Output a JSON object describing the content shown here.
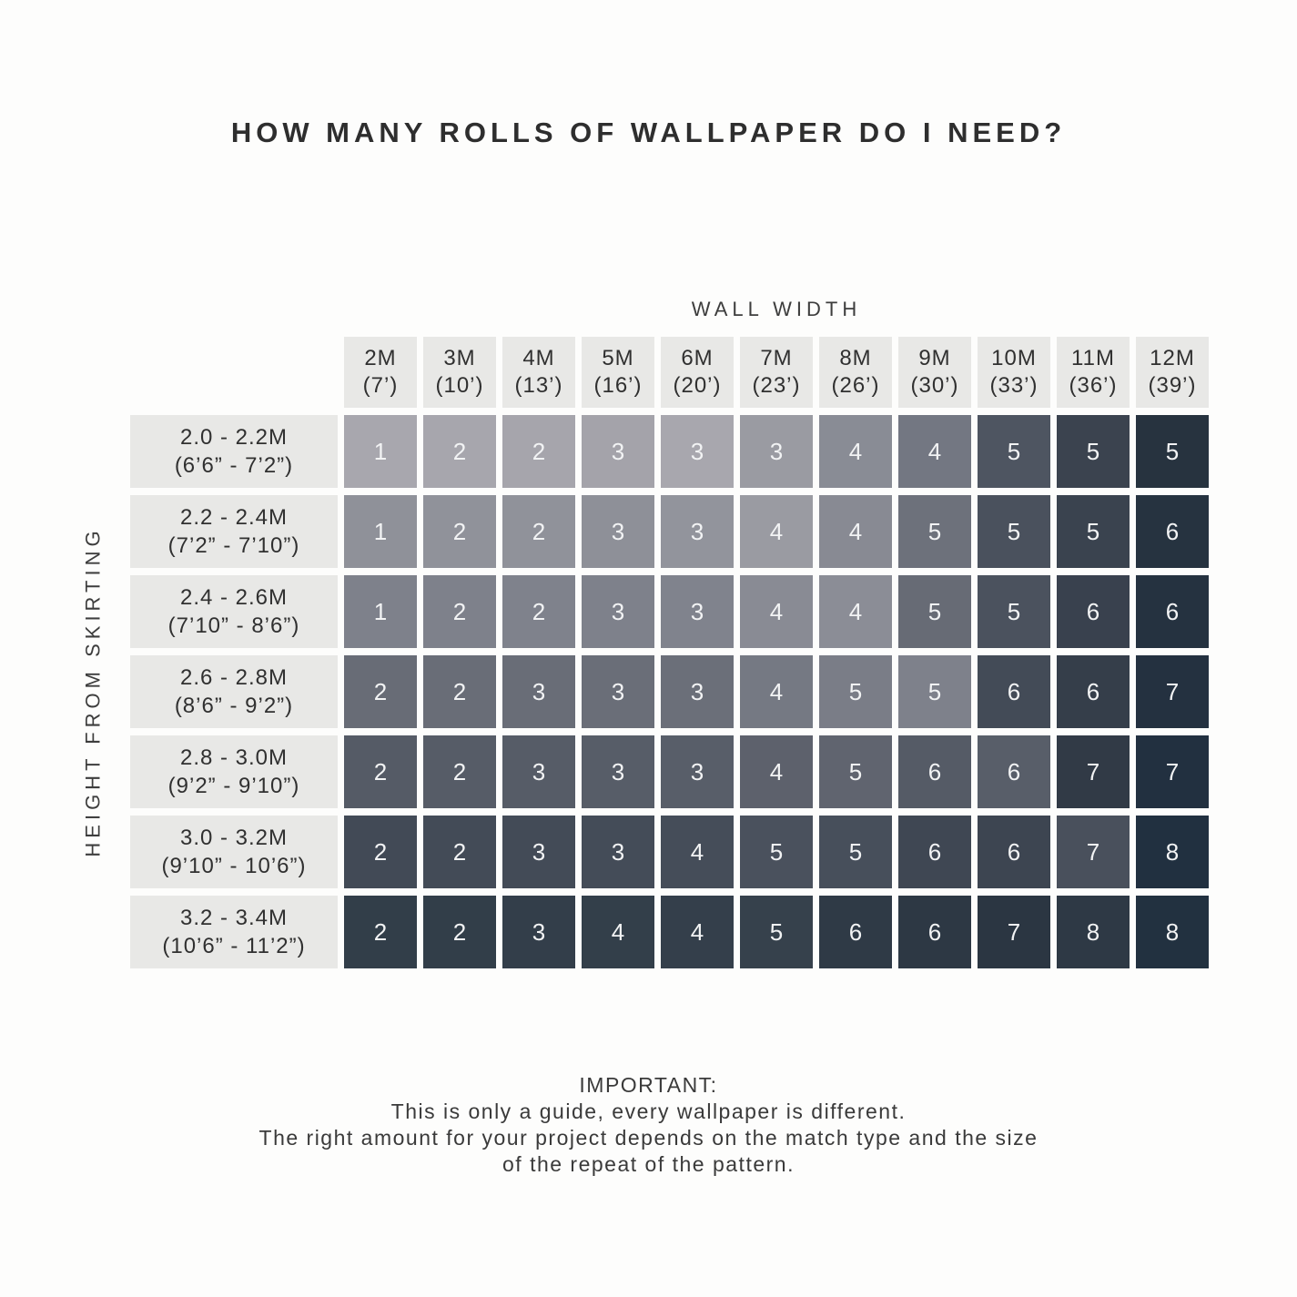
{
  "title": "HOW MANY ROLLS OF WALLPAPER DO I NEED?",
  "axes": {
    "column_axis_title": "WALL WIDTH",
    "row_axis_title": "HEIGHT FROM SKIRTING"
  },
  "columns": [
    {
      "line1": "2M",
      "line2": "(7’)"
    },
    {
      "line1": "3M",
      "line2": "(10’)"
    },
    {
      "line1": "4M",
      "line2": "(13’)"
    },
    {
      "line1": "5M",
      "line2": "(16’)"
    },
    {
      "line1": "6M",
      "line2": "(20’)"
    },
    {
      "line1": "7M",
      "line2": "(23’)"
    },
    {
      "line1": "8M",
      "line2": "(26’)"
    },
    {
      "line1": "9M",
      "line2": "(30’)"
    },
    {
      "line1": "10M",
      "line2": "(33’)"
    },
    {
      "line1": "11M",
      "line2": "(36’)"
    },
    {
      "line1": "12M",
      "line2": "(39’)"
    }
  ],
  "rows": [
    {
      "line1": "2.0 - 2.2M",
      "line2": "(6’6” - 7’2”)"
    },
    {
      "line1": "2.2 - 2.4M",
      "line2": "(7’2” - 7’10”)"
    },
    {
      "line1": "2.4 - 2.6M",
      "line2": "(7’10” - 8’6”)"
    },
    {
      "line1": "2.6 - 2.8M",
      "line2": "(8’6” - 9’2”)"
    },
    {
      "line1": "2.8 - 3.0M",
      "line2": "(9’2” - 9’10”)"
    },
    {
      "line1": "3.0 - 3.2M",
      "line2": "(9’10” - 10’6”)"
    },
    {
      "line1": "3.2 - 3.4M",
      "line2": "(10’6” - 11’2”)"
    }
  ],
  "footer": {
    "heading": "IMPORTANT:",
    "line1": "This is only a guide, every wallpaper is different.",
    "line2": "The right amount for your project depends on the match type and the size",
    "line3": "of the repeat of the pattern."
  },
  "colors": {
    "page_bg": "#fdfdfc",
    "header_box_bg": "#e8e8e6",
    "heading_text": "#2e2e2e",
    "label_text": "#303030",
    "cell_text": "#f2f3f4"
  },
  "chart_data": {
    "type": "heatmap",
    "title": "HOW MANY ROLLS OF WALLPAPER DO I NEED?",
    "x_label": "WALL WIDTH",
    "y_label": "HEIGHT FROM SKIRTING",
    "x_categories": [
      "2M (7’)",
      "3M (10’)",
      "4M (13’)",
      "5M (16’)",
      "6M (20’)",
      "7M (23’)",
      "8M (26’)",
      "9M (30’)",
      "10M (33’)",
      "11M (36’)",
      "12M (39’)"
    ],
    "y_categories": [
      "2.0 - 2.2M (6’6” - 7’2”)",
      "2.2 - 2.4M (7’2” - 7’10”)",
      "2.4 - 2.6M (7’10” - 8’6”)",
      "2.6 - 2.8M (8’6” - 9’2”)",
      "2.8 - 3.0M (9’2” - 9’10”)",
      "3.0 - 3.2M (9’10” - 10’6”)",
      "3.2 - 3.4M (10’6” - 11’2”)"
    ],
    "values": [
      [
        1,
        2,
        2,
        3,
        3,
        3,
        4,
        4,
        5,
        5,
        5
      ],
      [
        1,
        2,
        2,
        3,
        3,
        4,
        4,
        5,
        5,
        5,
        6
      ],
      [
        1,
        2,
        2,
        3,
        3,
        4,
        4,
        5,
        5,
        6,
        6
      ],
      [
        2,
        2,
        3,
        3,
        3,
        4,
        5,
        5,
        6,
        6,
        7
      ],
      [
        2,
        2,
        3,
        3,
        3,
        4,
        5,
        6,
        6,
        7,
        7
      ],
      [
        2,
        2,
        3,
        3,
        4,
        5,
        5,
        6,
        6,
        7,
        8
      ],
      [
        2,
        2,
        3,
        4,
        4,
        5,
        6,
        6,
        7,
        8,
        8
      ]
    ],
    "cell_colors": [
      [
        "#a8a7ae",
        "#a7a6ad",
        "#a6a5ac",
        "#a4a3aa",
        "#a8a7ae",
        "#9a9ba2",
        "#898c95",
        "#737782",
        "#4e5561",
        "#3b434f",
        "#27333f"
      ],
      [
        "#8f9199",
        "#90929a",
        "#90929a",
        "#8e9098",
        "#92949c",
        "#9a9ba2",
        "#888a93",
        "#6d717b",
        "#4a515d",
        "#3a434f",
        "#263340"
      ],
      [
        "#7e818b",
        "#7e818b",
        "#7f828c",
        "#7e818b",
        "#80838d",
        "#898b94",
        "#8b8d96",
        "#676b75",
        "#4b525e",
        "#39414e",
        "#253240"
      ],
      [
        "#686c76",
        "#696d77",
        "#696d77",
        "#6a6e78",
        "#6b6f79",
        "#757983",
        "#7a7d87",
        "#7e818b",
        "#434b57",
        "#353e4a",
        "#243140"
      ],
      [
        "#555b66",
        "#565c67",
        "#565c67",
        "#575d68",
        "#585e69",
        "#5d616c",
        "#60646f",
        "#555b66",
        "#585e69",
        "#313a46",
        "#223040"
      ],
      [
        "#424a56",
        "#434b57",
        "#434b57",
        "#444c58",
        "#454d59",
        "#4a515d",
        "#474f5b",
        "#3f4753",
        "#3d4551",
        "#49505c",
        "#213040"
      ],
      [
        "#323e49",
        "#323e49",
        "#333e4a",
        "#333f4a",
        "#343f4b",
        "#36414c",
        "#2f3a46",
        "#2d3844",
        "#2b3642",
        "#2e3945",
        "#223140"
      ]
    ],
    "legend": "none",
    "grid": "off",
    "note": "IMPORTANT: This is only a guide, every wallpaper is different. The right amount for your project depends on the match type and the size of the repeat of the pattern."
  }
}
